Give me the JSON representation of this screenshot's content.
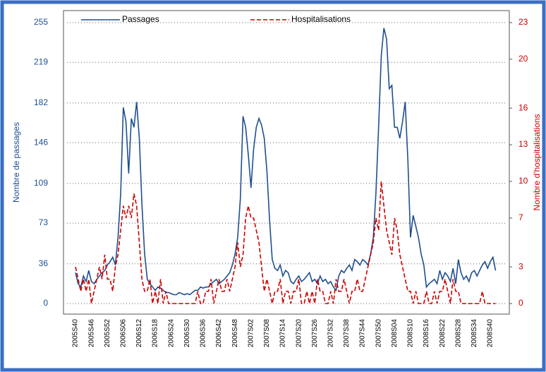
{
  "chart_data": {
    "type": "line",
    "ylabel": "Nombre de passages",
    "y2label": "Nombre d'hospitalisations",
    "categories": [
      "2005S40",
      null,
      null,
      null,
      null,
      null,
      "2005S46",
      null,
      null,
      null,
      null,
      null,
      "2005S52",
      null,
      null,
      null,
      null,
      null,
      "2006S06",
      null,
      null,
      null,
      null,
      null,
      "2006S12",
      null,
      null,
      null,
      null,
      null,
      "2006S18",
      null,
      null,
      null,
      null,
      null,
      "2006S24",
      null,
      null,
      null,
      null,
      null,
      "2006S30",
      null,
      null,
      null,
      null,
      null,
      "2006S36",
      null,
      null,
      null,
      null,
      null,
      "2006S42",
      null,
      null,
      null,
      null,
      null,
      "2006S48",
      null,
      null,
      null,
      null,
      null,
      "2007S02",
      null,
      null,
      null,
      null,
      null,
      "2007S08",
      null,
      null,
      null,
      null,
      null,
      "2007S14",
      null,
      null,
      null,
      null,
      null,
      "2007S20",
      null,
      null,
      null,
      null,
      null,
      "2007S26",
      null,
      null,
      null,
      null,
      null,
      "2007S32",
      null,
      null,
      null,
      null,
      null,
      "2007S38",
      null,
      null,
      null,
      null,
      null,
      "2007S44",
      null,
      null,
      null,
      null,
      null,
      "2007S50",
      null,
      null,
      null,
      null,
      null,
      "2008S04",
      null,
      null,
      null,
      null,
      null,
      "2008S10",
      null,
      null,
      null,
      null,
      null,
      "2008S16",
      null,
      null,
      null,
      null,
      null,
      "2008S22",
      null,
      null,
      null,
      null,
      null,
      "2008S28",
      null,
      null,
      null,
      null,
      null,
      "2008S34",
      null,
      null,
      null,
      null,
      null,
      "2008S40",
      null,
      null
    ],
    "series": [
      {
        "name": "Passages",
        "color": "#1f4f8f",
        "values": [
          28,
          18,
          15,
          25,
          20,
          30,
          20,
          18,
          22,
          25,
          28,
          30,
          35,
          38,
          42,
          35,
          60,
          100,
          178,
          165,
          118,
          168,
          160,
          183,
          150,
          90,
          45,
          22,
          18,
          15,
          12,
          15,
          14,
          12,
          10,
          10,
          9,
          8,
          8,
          10,
          9,
          8,
          9,
          8,
          10,
          12,
          12,
          15,
          14,
          15,
          15,
          18,
          20,
          22,
          18,
          20,
          22,
          25,
          28,
          35,
          45,
          60,
          95,
          170,
          160,
          135,
          105,
          140,
          160,
          168,
          162,
          150,
          120,
          75,
          40,
          32,
          30,
          35,
          25,
          30,
          28,
          20,
          18,
          22,
          25,
          20,
          22,
          25,
          28,
          20,
          22,
          18,
          25,
          20,
          22,
          18,
          20,
          15,
          12,
          25,
          30,
          28,
          32,
          35,
          30,
          40,
          38,
          35,
          40,
          38,
          35,
          45,
          60,
          100,
          160,
          225,
          250,
          240,
          195,
          198,
          160,
          160,
          150,
          165,
          183,
          130,
          60,
          80,
          70,
          60,
          45,
          35,
          15,
          18,
          20,
          22,
          18,
          30,
          22,
          28,
          25,
          20,
          32,
          18,
          40,
          28,
          22,
          25,
          20,
          28,
          30,
          25,
          30,
          35,
          38,
          32,
          38,
          42,
          30
        ]
      },
      {
        "name": "Hospitalisations",
        "color": "#cc0000",
        "dashed": true,
        "axis": "y2",
        "values": [
          3,
          2,
          1,
          2,
          1,
          2,
          0,
          1,
          2,
          3,
          2,
          4,
          2,
          2,
          1,
          3,
          4,
          6,
          8,
          7,
          8,
          7,
          9,
          8,
          5,
          2,
          1,
          1,
          2,
          0,
          1,
          0,
          2,
          0,
          1,
          0,
          0,
          0,
          0,
          0,
          0,
          0,
          0,
          0,
          0,
          0,
          1,
          0,
          0,
          1,
          1,
          2,
          0,
          1,
          2,
          1,
          1,
          2,
          1,
          2,
          3,
          5,
          3,
          4,
          7,
          8,
          7,
          7,
          6,
          5,
          3,
          1,
          2,
          1,
          0,
          1,
          1,
          2,
          0,
          1,
          1,
          0,
          1,
          1,
          2,
          0,
          0,
          1,
          0,
          1,
          0,
          2,
          1,
          1,
          0,
          0,
          1,
          0,
          2,
          1,
          1,
          2,
          1,
          0,
          1,
          1,
          2,
          1,
          1,
          2,
          3,
          4,
          5,
          7,
          6,
          10,
          8,
          6,
          5,
          4,
          7,
          6,
          4,
          3,
          2,
          1,
          1,
          0,
          1,
          0,
          0,
          0,
          1,
          0,
          0,
          1,
          0,
          1,
          1,
          2,
          1,
          0,
          2,
          1,
          1,
          0,
          0,
          0,
          0,
          0,
          0,
          0,
          0,
          1,
          0,
          0,
          0,
          0,
          0
        ]
      }
    ],
    "ylim": [
      0,
      255
    ],
    "yticks": [
      0,
      36,
      73,
      109,
      146,
      182,
      219,
      255
    ],
    "y2lim": [
      0,
      23
    ],
    "y2ticks": [
      0,
      3,
      7,
      10,
      13,
      16,
      20,
      23
    ],
    "grid": true
  }
}
